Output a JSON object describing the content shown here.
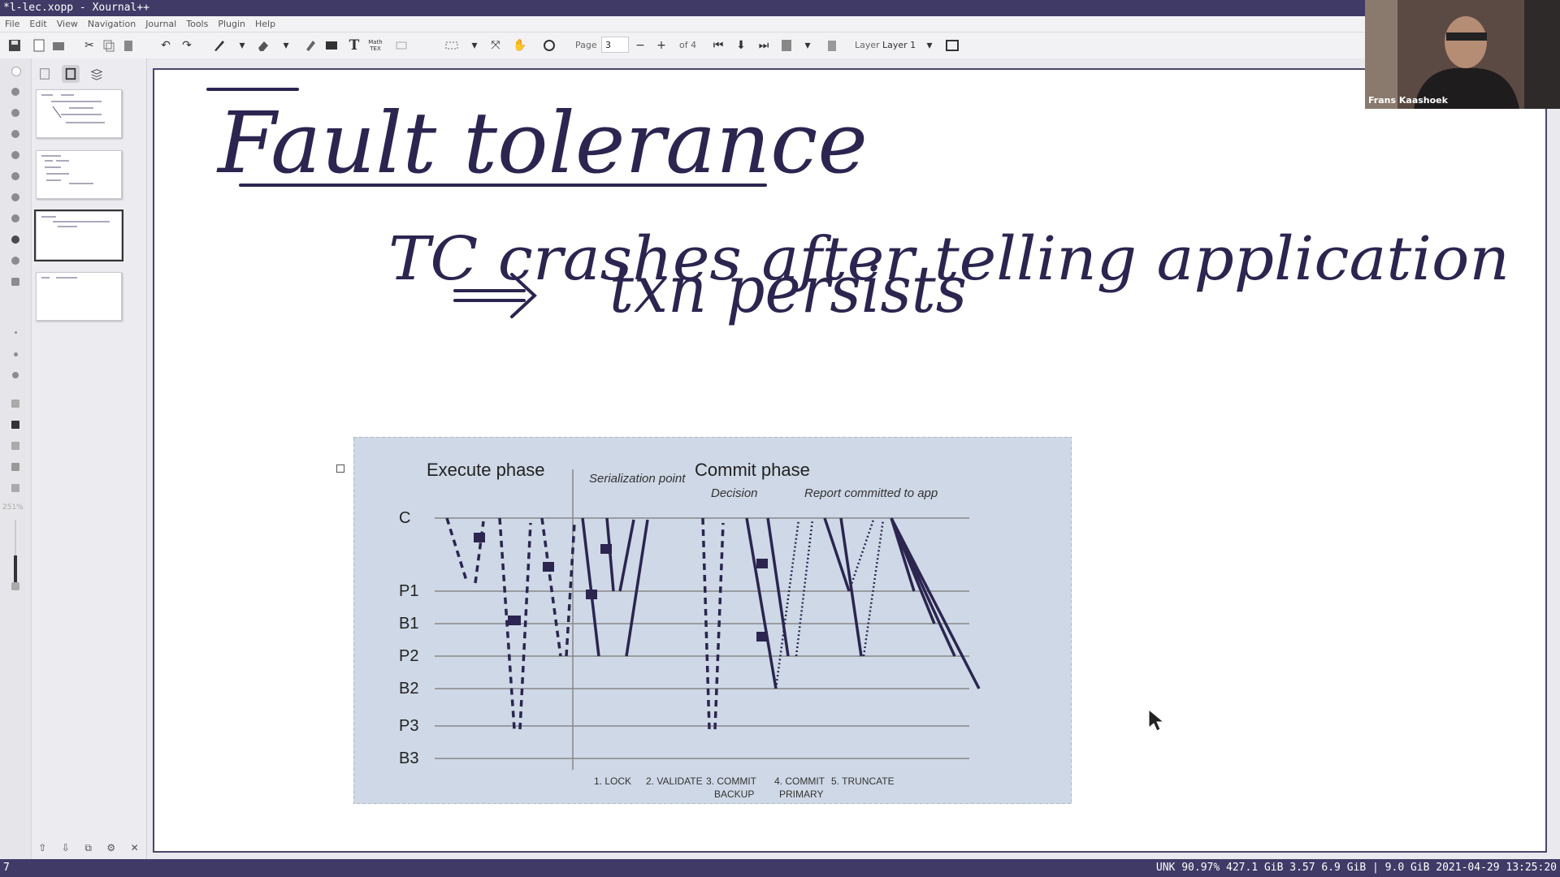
{
  "window": {
    "title": "*l-lec.xopp - Xournal++"
  },
  "menu": [
    "File",
    "Edit",
    "View",
    "Navigation",
    "Journal",
    "Tools",
    "Plugin",
    "Help"
  ],
  "toolbar": {
    "page_label": "Page",
    "page_value": "3",
    "page_of": "of 4",
    "layer_label": "Layer",
    "layer_value": "Layer 1",
    "tex_label": "Math TEX"
  },
  "sidebar": {
    "zoom": "251%"
  },
  "page_content": {
    "handwriting": {
      "title": "Fault tolerance",
      "line1": "TC crashes after telling application",
      "line2": "txn persists"
    },
    "figure": {
      "execute_phase": "Execute phase",
      "commit_phase": "Commit phase",
      "serialization_point": "Serialization point",
      "decision": "Decision",
      "report": "Report committed to app",
      "rows": [
        "C",
        "P1",
        "B1",
        "P2",
        "B2",
        "P3",
        "B3"
      ],
      "steps": [
        "1. LOCK",
        "2. VALIDATE",
        "3. COMMIT",
        "BACKUP",
        "4. COMMIT",
        "PRIMARY",
        "5. TRUNCATE"
      ]
    }
  },
  "video": {
    "name": "Frans Kaashoek"
  },
  "status": {
    "left": "7",
    "right": "UNK 90.97% 427.1 GiB 3.57 6.9 GiB | 9.0 GiB 2021-04-29 13:25:20"
  }
}
